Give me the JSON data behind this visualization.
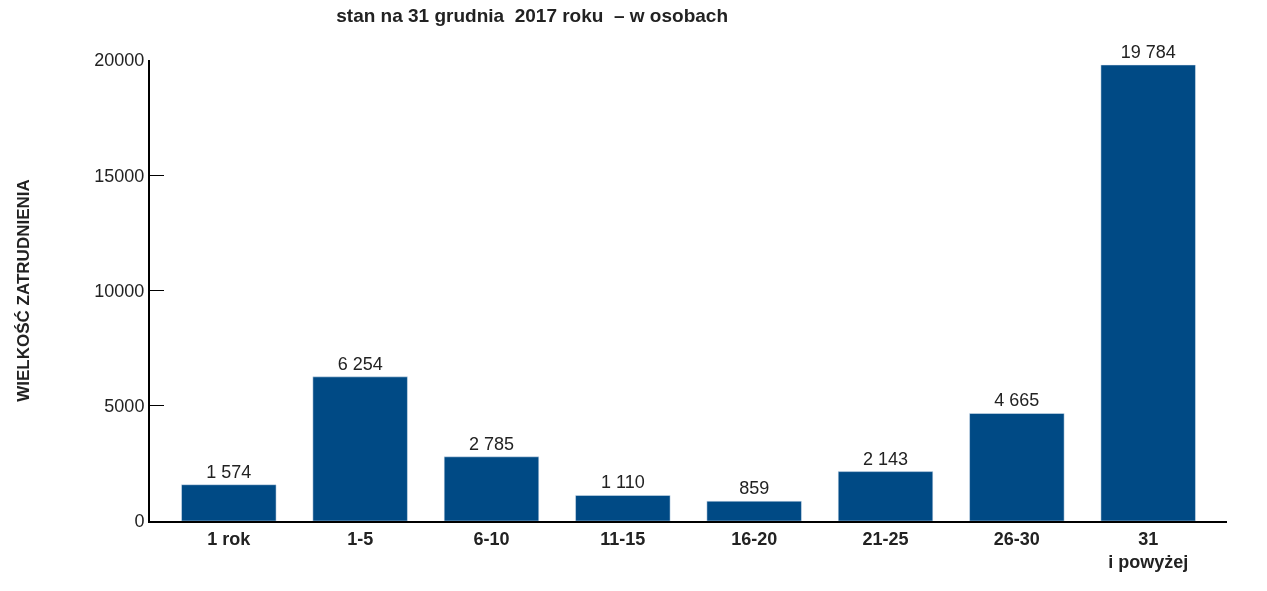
{
  "chart_data": {
    "type": "bar",
    "title": "stan na 31 grudnia  2017 roku  – w osobach",
    "ylabel": "WIELKOŚĆ ZATRUDNIENIA",
    "categories": [
      "1 rok",
      "1-5",
      "6-10",
      "11-15",
      "16-20",
      "21-25",
      "26-30",
      "31\ni powyżej"
    ],
    "values": [
      1574,
      6254,
      2785,
      1110,
      859,
      2143,
      4665,
      19784
    ],
    "value_labels": [
      "1 574",
      "6 254",
      "2 785",
      "1 110",
      "859",
      "2 143",
      "4 665",
      "19 784"
    ],
    "color": "#004a85",
    "ylim": [
      0,
      20000
    ],
    "yticks": [
      0,
      5000,
      10000,
      15000,
      20000
    ]
  }
}
